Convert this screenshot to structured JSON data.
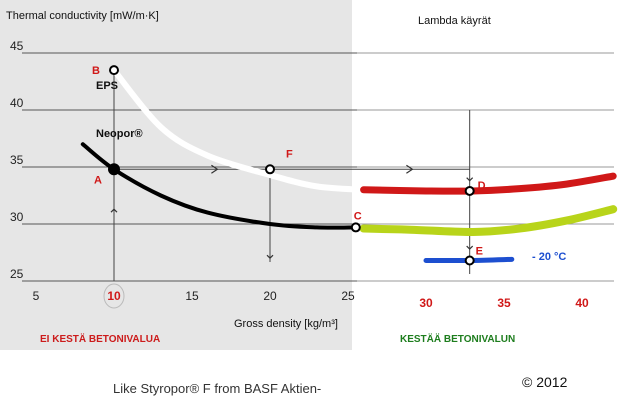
{
  "chart_data": {
    "type": "line",
    "ylabel": "Thermal conductivity [mW/m·K]",
    "xlabel": "Gross density [kg/m³]",
    "title": "Lambda käyrät",
    "x_ticks_left": [
      "5",
      "10",
      "15",
      "20",
      "25"
    ],
    "x_ticks_right": [
      "30",
      "35",
      "40"
    ],
    "y_ticks": [
      "25",
      "30",
      "35",
      "40",
      "45"
    ],
    "xlim": [
      3,
      42
    ],
    "ylim": [
      23,
      46
    ],
    "grid": true,
    "series": [
      {
        "name": "EPS",
        "color": "#ffffff",
        "x": [
          10,
          13,
          16,
          20,
          23,
          26
        ],
        "y": [
          43.5,
          38.5,
          36.0,
          34.3,
          33.3,
          33.0
        ]
      },
      {
        "name": "Neopor®",
        "color": "#000000",
        "x": [
          8,
          10,
          13,
          16,
          20,
          23,
          25.5
        ],
        "y": [
          37.0,
          34.8,
          32.5,
          31.0,
          30.0,
          29.7,
          29.7
        ]
      },
      {
        "name": "",
        "color": "#d01818",
        "x": [
          26,
          30,
          33,
          36,
          39,
          42
        ],
        "y": [
          33.0,
          32.9,
          32.9,
          33.1,
          33.5,
          34.2
        ]
      },
      {
        "name": "",
        "color": "#b8d41a",
        "x": [
          26,
          29,
          33,
          36,
          39,
          42
        ],
        "y": [
          29.6,
          29.5,
          29.3,
          29.6,
          30.3,
          31.3
        ]
      },
      {
        "name": "- 20 °C",
        "color": "#1d4fd0",
        "x": [
          30,
          32.8,
          35.5
        ],
        "y": [
          26.8,
          26.8,
          26.9
        ]
      }
    ],
    "points": [
      {
        "label": "A",
        "x": 10,
        "y": 34.8
      },
      {
        "label": "B",
        "x": 10,
        "y": 43.5
      },
      {
        "label": "C",
        "x": 25.5,
        "y": 29.7
      },
      {
        "label": "D",
        "x": 32.8,
        "y": 32.9
      },
      {
        "label": "E",
        "x": 32.8,
        "y": 26.8
      },
      {
        "label": "F",
        "x": 20,
        "y": 34.8
      }
    ],
    "region_left_label": "EI KESTÄ BETONIVALUA",
    "region_right_label": "KESTÄÄ BETONIVALUN",
    "colors": {
      "left_panel": "#e6e6e6",
      "region_left": "#cc1b1b",
      "region_right": "#1d7d1d",
      "label": "#d01818",
      "minus20": "#1d4fd0"
    }
  },
  "footer": {
    "credit": "Like Styropor® F from BASF Aktien-",
    "copyright": "© 2012"
  }
}
